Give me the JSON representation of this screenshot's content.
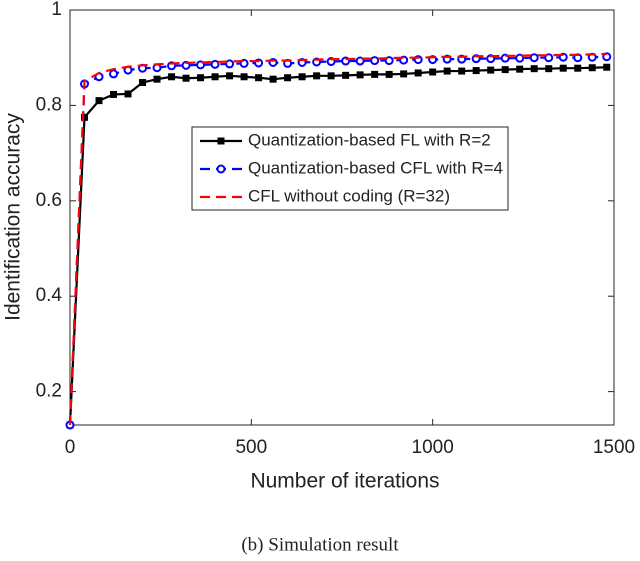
{
  "chart_data": {
    "type": "line",
    "caption": "(b) Simulation result",
    "xlabel": "Number of iterations",
    "ylabel": "Identification accuracy",
    "xlim": [
      0,
      1500
    ],
    "xticks": [
      0,
      500,
      1000,
      1500
    ],
    "ylim": [
      0.13,
      1
    ],
    "yticks": [
      0.2,
      0.4,
      0.6,
      0.8,
      1
    ],
    "legend": "upper right",
    "x": [
      0,
      40,
      80,
      120,
      160,
      200,
      240,
      280,
      320,
      360,
      400,
      440,
      480,
      520,
      560,
      600,
      640,
      680,
      720,
      760,
      800,
      840,
      880,
      920,
      960,
      1000,
      1040,
      1080,
      1120,
      1160,
      1200,
      1240,
      1280,
      1320,
      1360,
      1400,
      1440,
      1480
    ],
    "series": [
      {
        "name": "Quantization-based FL with R=2",
        "color": "#000000",
        "line_style": "solid",
        "marker": "square",
        "values": [
          0.13,
          0.775,
          0.81,
          0.823,
          0.824,
          0.848,
          0.855,
          0.86,
          0.857,
          0.858,
          0.86,
          0.862,
          0.86,
          0.858,
          0.855,
          0.858,
          0.86,
          0.862,
          0.862,
          0.863,
          0.864,
          0.865,
          0.865,
          0.866,
          0.868,
          0.87,
          0.872,
          0.872,
          0.873,
          0.874,
          0.875,
          0.876,
          0.877,
          0.877,
          0.878,
          0.878,
          0.879,
          0.88
        ]
      },
      {
        "name": "Quantization-based CFL with R=4",
        "color": "#0000ff",
        "line_style": "dashed",
        "marker": "circle",
        "values": [
          0.13,
          0.845,
          0.86,
          0.866,
          0.874,
          0.878,
          0.879,
          0.883,
          0.884,
          0.885,
          0.886,
          0.887,
          0.888,
          0.889,
          0.89,
          0.888,
          0.89,
          0.891,
          0.892,
          0.893,
          0.893,
          0.894,
          0.894,
          0.895,
          0.896,
          0.896,
          0.897,
          0.897,
          0.898,
          0.898,
          0.899,
          0.899,
          0.9,
          0.9,
          0.901,
          0.9,
          0.901,
          0.902
        ]
      },
      {
        "name": "CFL without coding (R=32)",
        "color": "#ff0000",
        "line_style": "dashed",
        "marker": "none",
        "values": [
          0.13,
          0.85,
          0.868,
          0.876,
          0.881,
          0.884,
          0.886,
          0.888,
          0.889,
          0.89,
          0.891,
          0.892,
          0.893,
          0.893,
          0.894,
          0.894,
          0.895,
          0.896,
          0.897,
          0.897,
          0.898,
          0.898,
          0.899,
          0.9,
          0.9,
          0.901,
          0.902,
          0.902,
          0.903,
          0.903,
          0.904,
          0.904,
          0.905,
          0.905,
          0.906,
          0.906,
          0.907,
          0.908
        ]
      }
    ]
  }
}
